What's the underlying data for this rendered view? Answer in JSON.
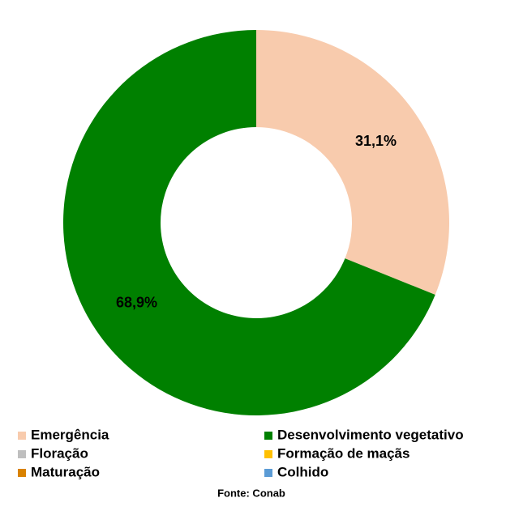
{
  "chart_data": {
    "type": "donut",
    "categories": [
      "Emergência",
      "Desenvolvimento vegetativo",
      "Floração",
      "Formação de maçãs",
      "Maturação",
      "Colhido"
    ],
    "values": [
      31.1,
      68.9,
      0,
      0,
      0,
      0
    ],
    "value_labels": [
      "31,1%",
      "68,9%",
      null,
      null,
      null,
      null
    ],
    "colors": [
      "#f8cbad",
      "#008000",
      "#bfbfbf",
      "#ffc000",
      "#d98200",
      "#5b9bd5"
    ],
    "source": "Fonte: Conab"
  }
}
